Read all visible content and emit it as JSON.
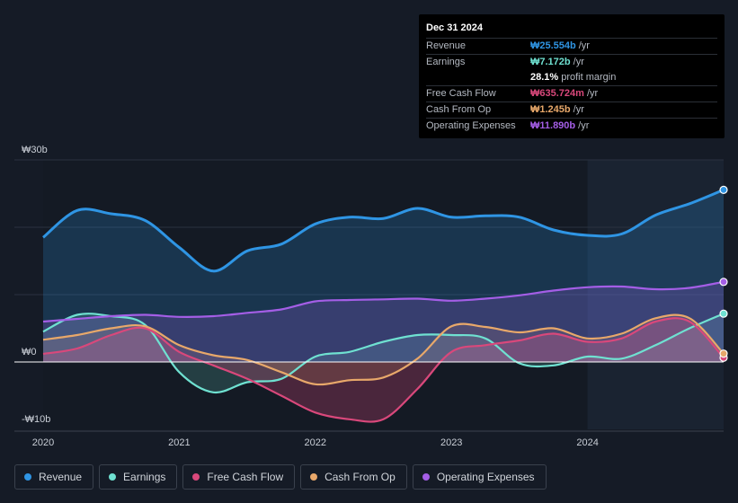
{
  "chart_data": {
    "type": "area",
    "title": "",
    "y_axis": {
      "top_label": "₩30b",
      "zero_label": "₩0",
      "bottom_label": "-₩10b",
      "ylim": [
        -10,
        30
      ]
    },
    "x_ticks": [
      "2020",
      "2021",
      "2022",
      "2023",
      "2024"
    ],
    "x": [
      2020.0,
      2020.25,
      2020.5,
      2020.75,
      2021.0,
      2021.25,
      2021.5,
      2021.75,
      2022.0,
      2022.25,
      2022.5,
      2022.75,
      2023.0,
      2023.25,
      2023.5,
      2023.75,
      2024.0,
      2024.25,
      2024.5,
      2024.75,
      2025.0
    ],
    "series": [
      {
        "name": "Revenue",
        "color": "#2f95e4",
        "values": [
          18.5,
          22.5,
          22.0,
          21.0,
          17.0,
          13.5,
          16.5,
          17.5,
          20.5,
          21.5,
          21.3,
          22.8,
          21.5,
          21.7,
          21.5,
          19.6,
          18.8,
          19.0,
          21.8,
          23.5,
          25.554
        ]
      },
      {
        "name": "Earnings",
        "color": "#6fe1d1",
        "values": [
          4.5,
          7.0,
          6.8,
          5.5,
          -1.5,
          -4.5,
          -3.0,
          -2.5,
          0.8,
          1.5,
          3.0,
          4.0,
          4.0,
          3.5,
          -0.2,
          -0.5,
          0.8,
          0.5,
          2.5,
          5.0,
          7.172
        ]
      },
      {
        "name": "Free Cash Flow",
        "color": "#d9487b",
        "values": [
          1.2,
          2.0,
          4.0,
          5.0,
          1.5,
          -0.5,
          -2.5,
          -5.0,
          -7.5,
          -8.5,
          -8.5,
          -4.0,
          1.5,
          2.5,
          3.2,
          4.2,
          3.0,
          3.5,
          6.0,
          6.0,
          0.636
        ]
      },
      {
        "name": "Cash From Op",
        "color": "#e8a86a",
        "values": [
          3.3,
          4.0,
          5.0,
          5.3,
          2.5,
          1.0,
          0.3,
          -1.5,
          -3.3,
          -2.7,
          -2.3,
          0.5,
          5.3,
          5.2,
          4.4,
          5.0,
          3.5,
          4.2,
          6.5,
          6.5,
          1.245
        ]
      },
      {
        "name": "Operating Expenses",
        "color": "#a45ee6",
        "values": [
          6.0,
          6.4,
          6.8,
          7.0,
          6.7,
          6.8,
          7.3,
          7.8,
          9.0,
          9.2,
          9.3,
          9.4,
          9.1,
          9.4,
          9.9,
          10.6,
          11.1,
          11.2,
          10.8,
          11.0,
          11.89
        ]
      }
    ],
    "forecast_shade_start": 2024.0,
    "legend_position": "bottom-left"
  },
  "tooltip": {
    "date": "Dec 31 2024",
    "rows": [
      {
        "label": "Revenue",
        "value": "₩25.554b",
        "unit": "/yr",
        "color": "#2f95e4"
      },
      {
        "label": "Earnings",
        "value": "₩7.172b",
        "unit": "/yr",
        "color": "#6fe1d1"
      },
      {
        "label": "",
        "value": "28.1%",
        "unit": "profit margin",
        "color": "#ffffff"
      },
      {
        "label": "Free Cash Flow",
        "value": "₩635.724m",
        "unit": "/yr",
        "color": "#d9487b"
      },
      {
        "label": "Cash From Op",
        "value": "₩1.245b",
        "unit": "/yr",
        "color": "#e8a86a"
      },
      {
        "label": "Operating Expenses",
        "value": "₩11.890b",
        "unit": "/yr",
        "color": "#a45ee6"
      }
    ]
  },
  "legend": [
    {
      "label": "Revenue",
      "color": "#2f95e4"
    },
    {
      "label": "Earnings",
      "color": "#6fe1d1"
    },
    {
      "label": "Free Cash Flow",
      "color": "#d9487b"
    },
    {
      "label": "Cash From Op",
      "color": "#e8a86a"
    },
    {
      "label": "Operating Expenses",
      "color": "#a45ee6"
    }
  ]
}
